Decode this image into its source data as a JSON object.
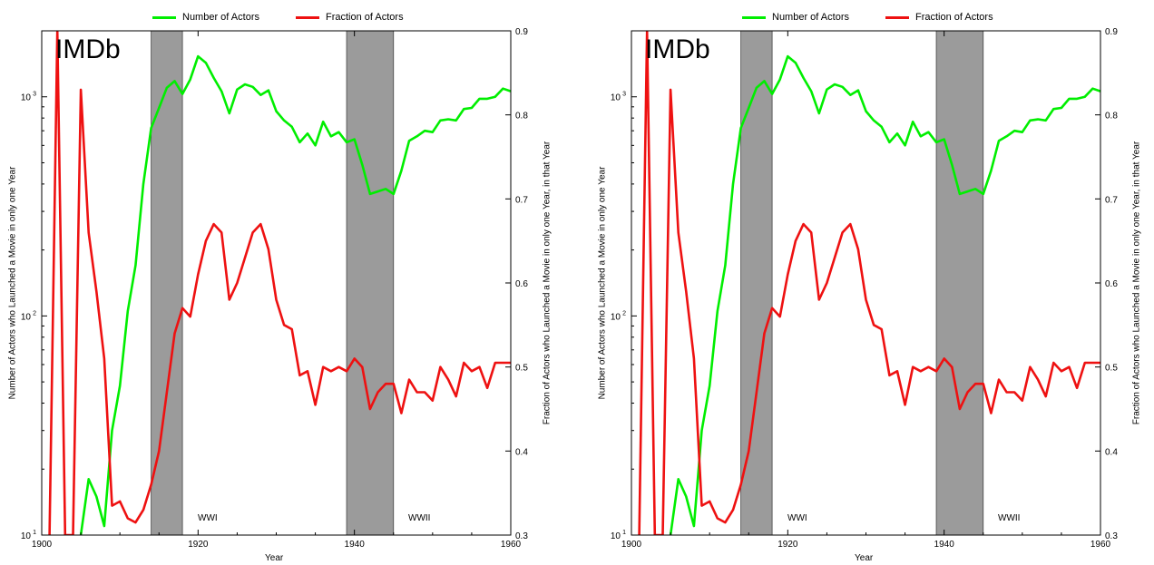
{
  "legend": {
    "number_label": "Number of Actors",
    "fraction_label": "Fraction of Actors",
    "number_color": "#00ee00",
    "fraction_color": "#ee1111"
  },
  "watermark": "IMDb",
  "events": [
    {
      "label": "WWI",
      "start": 1914,
      "end": 1918
    },
    {
      "label": "WWII",
      "start": 1939,
      "end": 1945
    }
  ],
  "chart_data": [
    {
      "type": "line",
      "xlabel": "Year",
      "ylabel_left": "Number of Actors who Launched a Movie in only one Year",
      "ylabel_right": "Fraction of Actors who Launched a Movie in only one Year, in that Year",
      "xlim": [
        1900,
        1960
      ],
      "ylim_left": [
        10,
        2000
      ],
      "ylim_left_scale": "log",
      "ylim_right": [
        0.3,
        0.9
      ],
      "x_ticks": [
        "1900",
        "1920",
        "1940",
        "1960"
      ],
      "y_left_ticks": [
        {
          "value": 10,
          "base": "10",
          "exp": "1"
        },
        {
          "value": 100,
          "base": "10",
          "exp": "2"
        },
        {
          "value": 1000,
          "base": "10",
          "exp": "3"
        }
      ],
      "y_right_ticks": [
        "0.3",
        "0.4",
        "0.5",
        "0.6",
        "0.7",
        "0.8",
        "0.9"
      ],
      "grid": false,
      "legend_position": "top",
      "series": [
        {
          "name": "Number of Actors",
          "axis": "left",
          "x": [
            1905,
            1906,
            1907,
            1908,
            1909,
            1910,
            1911,
            1912,
            1913,
            1914,
            1915,
            1916,
            1917,
            1918,
            1919,
            1920,
            1921,
            1922,
            1923,
            1924,
            1925,
            1926,
            1927,
            1928,
            1929,
            1930,
            1931,
            1932,
            1933,
            1934,
            1935,
            1936,
            1937,
            1938,
            1939,
            1940,
            1941,
            1942,
            1943,
            1944,
            1945,
            1946,
            1947,
            1948,
            1949,
            1950,
            1951,
            1952,
            1953,
            1954,
            1955,
            1956,
            1957,
            1958,
            1959,
            1960
          ],
          "values": [
            10,
            18,
            15,
            11,
            30,
            48,
            105,
            170,
            400,
            720,
            890,
            1100,
            1180,
            1030,
            1200,
            1530,
            1430,
            1220,
            1060,
            840,
            1080,
            1140,
            1110,
            1020,
            1070,
            860,
            780,
            730,
            620,
            680,
            600,
            770,
            660,
            690,
            620,
            640,
            490,
            360,
            370,
            380,
            360,
            460,
            630,
            660,
            700,
            690,
            780,
            790,
            780,
            880,
            890,
            980,
            980,
            1000,
            1090,
            1060
          ]
        },
        {
          "name": "Fraction of Actors",
          "axis": "right",
          "x": [
            1901,
            1902,
            1903,
            1904,
            1905,
            1906,
            1907,
            1908,
            1909,
            1910,
            1911,
            1912,
            1913,
            1914,
            1915,
            1916,
            1917,
            1918,
            1919,
            1920,
            1921,
            1922,
            1923,
            1924,
            1925,
            1926,
            1927,
            1928,
            1929,
            1930,
            1931,
            1932,
            1933,
            1934,
            1935,
            1936,
            1937,
            1938,
            1939,
            1940,
            1941,
            1942,
            1943,
            1944,
            1945,
            1946,
            1947,
            1948,
            1949,
            1950,
            1951,
            1952,
            1953,
            1954,
            1955,
            1956,
            1957,
            1958,
            1959,
            1960
          ],
          "values": [
            0.3,
            0.9,
            0.3,
            0.3,
            0.83,
            0.66,
            0.59,
            0.51,
            0.335,
            0.34,
            0.32,
            0.315,
            0.33,
            0.36,
            0.4,
            0.47,
            0.54,
            0.57,
            0.56,
            0.61,
            0.65,
            0.67,
            0.66,
            0.58,
            0.6,
            0.63,
            0.66,
            0.67,
            0.64,
            0.58,
            0.55,
            0.545,
            0.49,
            0.495,
            0.455,
            0.5,
            0.495,
            0.5,
            0.495,
            0.51,
            0.5,
            0.45,
            0.47,
            0.48,
            0.48,
            0.445,
            0.485,
            0.47,
            0.47,
            0.46,
            0.5,
            0.485,
            0.465,
            0.505,
            0.495,
            0.5,
            0.475,
            0.505,
            0.505,
            0.505
          ]
        }
      ]
    },
    {
      "type": "line",
      "xlabel": "Year",
      "ylabel_left": "Number of Actors who Launched a Movie in only one Year",
      "ylabel_right": "Fraction of Actors who Launched a Movie in only one Year, in that Year",
      "xlim": [
        1900,
        1960
      ],
      "ylim_left": [
        10,
        2000
      ],
      "ylim_left_scale": "log",
      "ylim_right": [
        0.3,
        0.9
      ],
      "x_ticks": [
        "1900",
        "1920",
        "1940",
        "1960"
      ],
      "y_left_ticks": [
        {
          "value": 10,
          "base": "10",
          "exp": "1"
        },
        {
          "value": 100,
          "base": "10",
          "exp": "2"
        },
        {
          "value": 1000,
          "base": "10",
          "exp": "3"
        }
      ],
      "y_right_ticks": [
        "0.3",
        "0.4",
        "0.5",
        "0.6",
        "0.7",
        "0.8",
        "0.9"
      ],
      "grid": false,
      "legend_position": "top",
      "series": [
        {
          "name": "Number of Actors",
          "axis": "left",
          "x": [
            1905,
            1906,
            1907,
            1908,
            1909,
            1910,
            1911,
            1912,
            1913,
            1914,
            1915,
            1916,
            1917,
            1918,
            1919,
            1920,
            1921,
            1922,
            1923,
            1924,
            1925,
            1926,
            1927,
            1928,
            1929,
            1930,
            1931,
            1932,
            1933,
            1934,
            1935,
            1936,
            1937,
            1938,
            1939,
            1940,
            1941,
            1942,
            1943,
            1944,
            1945,
            1946,
            1947,
            1948,
            1949,
            1950,
            1951,
            1952,
            1953,
            1954,
            1955,
            1956,
            1957,
            1958,
            1959,
            1960
          ],
          "values": [
            10,
            18,
            15,
            11,
            30,
            48,
            105,
            170,
            400,
            720,
            890,
            1100,
            1180,
            1030,
            1200,
            1530,
            1430,
            1220,
            1060,
            840,
            1080,
            1140,
            1110,
            1020,
            1070,
            860,
            780,
            730,
            620,
            680,
            600,
            770,
            660,
            690,
            620,
            640,
            490,
            360,
            370,
            380,
            360,
            460,
            630,
            660,
            700,
            690,
            780,
            790,
            780,
            880,
            890,
            980,
            980,
            1000,
            1090,
            1060
          ]
        },
        {
          "name": "Fraction of Actors",
          "axis": "right",
          "x": [
            1901,
            1902,
            1903,
            1904,
            1905,
            1906,
            1907,
            1908,
            1909,
            1910,
            1911,
            1912,
            1913,
            1914,
            1915,
            1916,
            1917,
            1918,
            1919,
            1920,
            1921,
            1922,
            1923,
            1924,
            1925,
            1926,
            1927,
            1928,
            1929,
            1930,
            1931,
            1932,
            1933,
            1934,
            1935,
            1936,
            1937,
            1938,
            1939,
            1940,
            1941,
            1942,
            1943,
            1944,
            1945,
            1946,
            1947,
            1948,
            1949,
            1950,
            1951,
            1952,
            1953,
            1954,
            1955,
            1956,
            1957,
            1958,
            1959,
            1960
          ],
          "values": [
            0.3,
            0.9,
            0.3,
            0.3,
            0.83,
            0.66,
            0.59,
            0.51,
            0.335,
            0.34,
            0.32,
            0.315,
            0.33,
            0.36,
            0.4,
            0.47,
            0.54,
            0.57,
            0.56,
            0.61,
            0.65,
            0.67,
            0.66,
            0.58,
            0.6,
            0.63,
            0.66,
            0.67,
            0.64,
            0.58,
            0.55,
            0.545,
            0.49,
            0.495,
            0.455,
            0.5,
            0.495,
            0.5,
            0.495,
            0.51,
            0.5,
            0.45,
            0.47,
            0.48,
            0.48,
            0.445,
            0.485,
            0.47,
            0.47,
            0.46,
            0.5,
            0.485,
            0.465,
            0.505,
            0.495,
            0.5,
            0.475,
            0.505,
            0.505,
            0.505
          ]
        }
      ]
    }
  ]
}
